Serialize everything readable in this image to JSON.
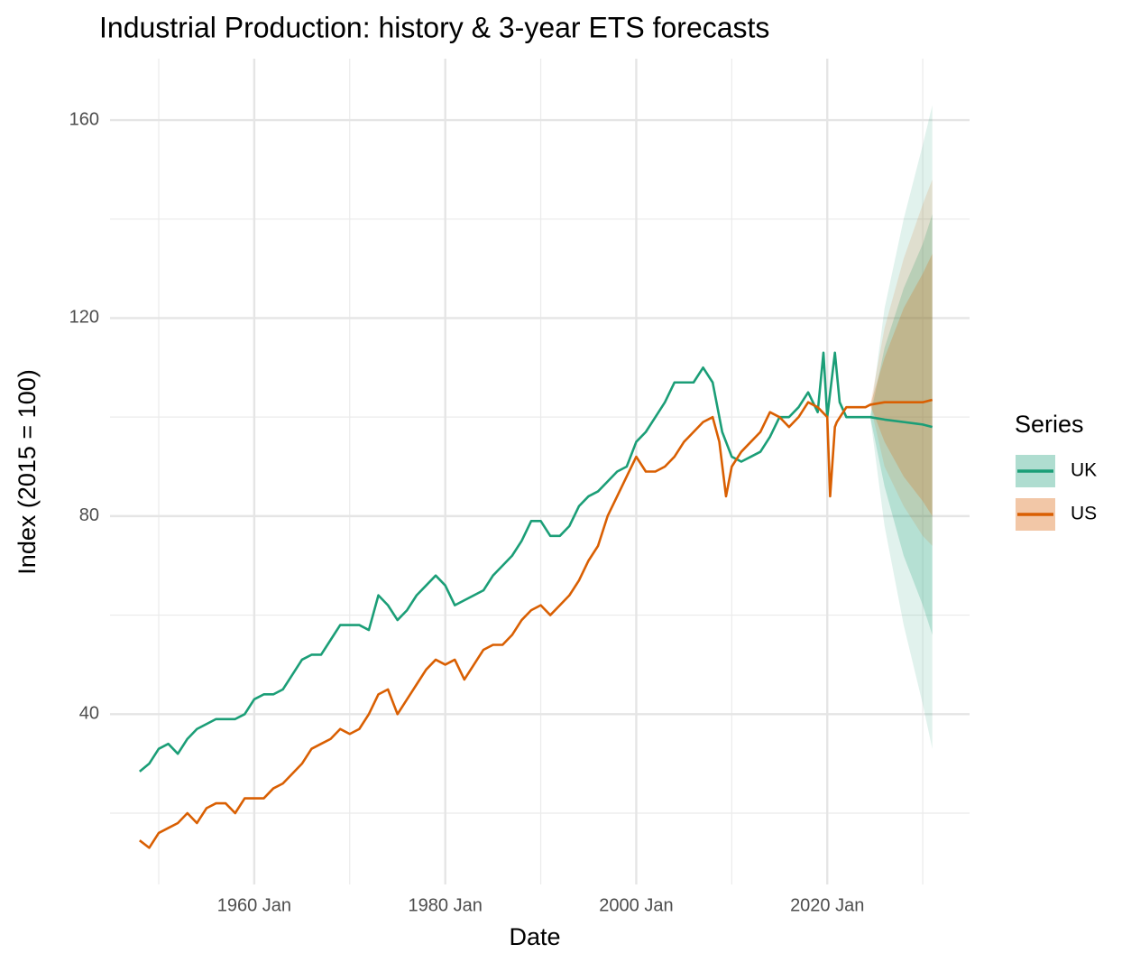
{
  "chart_data": {
    "type": "line",
    "title": "Industrial Production: history & 3-year ETS forecasts",
    "x_label": "Date",
    "y_label": "Index (2015 = 100)",
    "legend_title": "Series",
    "legend_position": "right",
    "xlim": [
      1944.9,
      2034.9
    ],
    "xticks": [
      {
        "value": 1960,
        "label": "1960 Jan"
      },
      {
        "value": 1980,
        "label": "1980 Jan"
      },
      {
        "value": 2000,
        "label": "2000 Jan"
      },
      {
        "value": 2020,
        "label": "2020 Jan"
      }
    ],
    "ylim": [
      5.6,
      172.4
    ],
    "yticks": [
      40,
      80,
      120,
      160
    ],
    "grid": true,
    "series": [
      {
        "name": "UK",
        "color": "#1b9e77",
        "x": [
          1948,
          1949,
          1950,
          1951,
          1952,
          1953,
          1954,
          1955,
          1956,
          1957,
          1958,
          1959,
          1960,
          1961,
          1962,
          1963,
          1964,
          1965,
          1966,
          1967,
          1968,
          1969,
          1970,
          1971,
          1972,
          1973,
          1974,
          1975,
          1976,
          1977,
          1978,
          1979,
          1980,
          1981,
          1982,
          1983,
          1984,
          1985,
          1986,
          1987,
          1988,
          1989,
          1990,
          1991,
          1992,
          1993,
          1994,
          1995,
          1996,
          1997,
          1998,
          1999,
          2000,
          2001,
          2002,
          2003,
          2004,
          2005,
          2006,
          2007,
          2008,
          2009,
          2010,
          2011,
          2012,
          2013,
          2014,
          2015,
          2016,
          2017,
          2018,
          2019,
          2019.6,
          2020,
          2020.8,
          2021.3,
          2022,
          2023,
          2024,
          2024.5,
          2026,
          2028,
          2030,
          2031
        ],
        "values": [
          28.4,
          30,
          33,
          34,
          32,
          35,
          37,
          38,
          39,
          39,
          39,
          40,
          43,
          44,
          44,
          45,
          48,
          51,
          52,
          52,
          55,
          58,
          58,
          58,
          57,
          64,
          62,
          59,
          61,
          64,
          66,
          68,
          66,
          62,
          63,
          64,
          65,
          68,
          70,
          72,
          75,
          79,
          79,
          76,
          76,
          78,
          82,
          84,
          85,
          87,
          89,
          90,
          95,
          97,
          100,
          103,
          107,
          107,
          107,
          110,
          107,
          97,
          92,
          91,
          92,
          93,
          96,
          100,
          100,
          102,
          105,
          101,
          113,
          100,
          113,
          103,
          100,
          100,
          100,
          100,
          99.5,
          99,
          98.5,
          98
        ],
        "forecast": {
          "x": [
            2024.5,
            2026,
            2028,
            2030,
            2031
          ],
          "lower95": [
            100,
            78,
            58,
            42,
            33
          ],
          "upper95": [
            100,
            122,
            140,
            155,
            163
          ],
          "lower80": [
            100,
            86,
            72,
            62,
            56
          ],
          "upper80": [
            100,
            114,
            126,
            135,
            141
          ]
        }
      },
      {
        "name": "US",
        "color": "#d95f02",
        "x": [
          1948,
          1949,
          1950,
          1951,
          1952,
          1953,
          1954,
          1955,
          1956,
          1957,
          1958,
          1959,
          1960,
          1961,
          1962,
          1963,
          1964,
          1965,
          1966,
          1967,
          1968,
          1969,
          1970,
          1971,
          1972,
          1973,
          1974,
          1975,
          1976,
          1977,
          1978,
          1979,
          1980,
          1981,
          1982,
          1983,
          1984,
          1985,
          1986,
          1987,
          1988,
          1989,
          1990,
          1991,
          1992,
          1993,
          1994,
          1995,
          1996,
          1997,
          1998,
          1999,
          2000,
          2001,
          2002,
          2003,
          2004,
          2005,
          2006,
          2007,
          2008,
          2008.7,
          2009.4,
          2010,
          2011,
          2012,
          2013,
          2014,
          2015,
          2016,
          2017,
          2018,
          2019,
          2020,
          2020.3,
          2020.8,
          2021,
          2022,
          2023,
          2024,
          2024.5,
          2026,
          2028,
          2030,
          2031
        ],
        "values": [
          14.5,
          13,
          16,
          17,
          18,
          20,
          18,
          21,
          22,
          22,
          20,
          23,
          23,
          23,
          25,
          26,
          28,
          30,
          33,
          34,
          35,
          37,
          36,
          37,
          40,
          44,
          45,
          40,
          43,
          46,
          49,
          51,
          50,
          51,
          47,
          50,
          53,
          54,
          54,
          56,
          59,
          61,
          62,
          60,
          62,
          64,
          67,
          71,
          74,
          80,
          84,
          88,
          92,
          89,
          89,
          90,
          92,
          95,
          97,
          99,
          100,
          95,
          84,
          90,
          93,
          95,
          97,
          101,
          100,
          98,
          100,
          103,
          102,
          100,
          84,
          98,
          99,
          102,
          102,
          102,
          102.5,
          103,
          103,
          103,
          103.5
        ],
        "forecast": {
          "x": [
            2024.5,
            2026,
            2028,
            2030,
            2031
          ],
          "lower95": [
            102.5,
            90,
            82,
            76,
            74
          ],
          "upper95": [
            102.5,
            118,
            132,
            143,
            148
          ],
          "lower80": [
            102.5,
            95,
            88,
            83,
            80
          ],
          "upper80": [
            102.5,
            112,
            122,
            129,
            133
          ]
        }
      }
    ]
  }
}
